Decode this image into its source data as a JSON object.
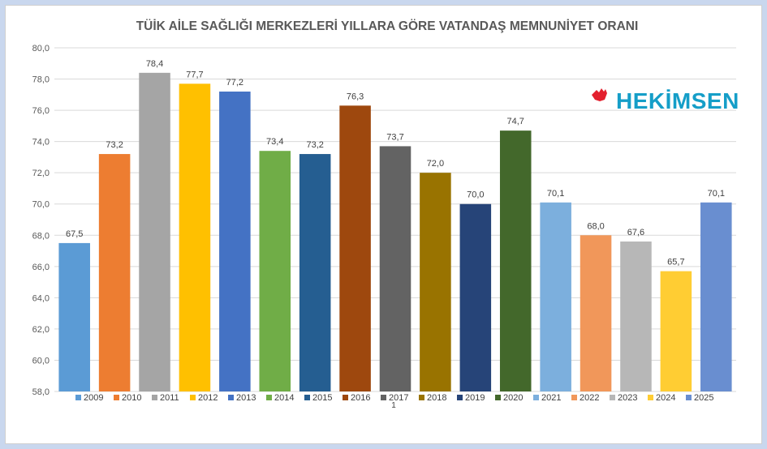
{
  "chart_data": {
    "type": "bar",
    "title": "TÜİK AİLE SAĞLIĞI MERKEZLERİ YILLARA GÖRE VATANDAŞ MEMNUNİYET ORANI",
    "xlabel": "",
    "ylabel": "",
    "ylim": [
      58,
      80
    ],
    "yticks": [
      "58,0",
      "60,0",
      "62,0",
      "64,0",
      "66,0",
      "68,0",
      "70,0",
      "72,0",
      "74,0",
      "76,0",
      "78,0",
      "80,0"
    ],
    "grid": true,
    "legend_position": "bottom",
    "categories": [
      "2009",
      "2010",
      "2011",
      "2012",
      "2013",
      "2014",
      "2015",
      "2016",
      "2017",
      "2018",
      "2019",
      "2020",
      "2021",
      "2022",
      "2023",
      "2024",
      "2025"
    ],
    "values": [
      67.5,
      73.2,
      78.4,
      77.7,
      77.2,
      73.4,
      73.2,
      76.3,
      73.7,
      72.0,
      70.0,
      74.7,
      70.1,
      68.0,
      67.6,
      65.7,
      70.1
    ],
    "value_labels": [
      "67,5",
      "73,2",
      "78,4",
      "77,7",
      "77,2",
      "73,4",
      "73,2",
      "76,3",
      "73,7",
      "72,0",
      "70,0",
      "74,7",
      "70,1",
      "68,0",
      "67,6",
      "65,7",
      "70,1"
    ],
    "colors": [
      "#5b9bd5",
      "#ed7d31",
      "#a5a5a5",
      "#ffc000",
      "#4472c4",
      "#70ad47",
      "#255e91",
      "#9e480e",
      "#636363",
      "#997300",
      "#264478",
      "#43682b",
      "#7cafdd",
      "#f1975a",
      "#b7b7b7",
      "#ffcd33",
      "#698ed0"
    ]
  },
  "footnote": "1",
  "logo": {
    "text": "HEKİMSEN",
    "icon": "crescent-hand-icon",
    "colors": {
      "crescent": "#e3202e",
      "text": "#159ec8"
    }
  }
}
